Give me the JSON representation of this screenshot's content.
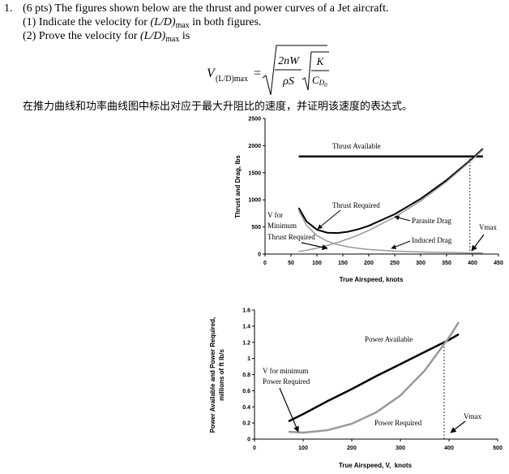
{
  "problem": {
    "number": "1.",
    "line1": "(6 pts) The figures shown below are the thrust and power curves of a Jet aircraft.",
    "line2": {
      "before": "(1) Indicate the velocity for ",
      "ratio": "(L/D)",
      "sub": "max",
      "after": " in both figures."
    },
    "line3": {
      "before": "(2) Prove the velocity for ",
      "ratio": "(L/D)",
      "sub": "max",
      "after": " is"
    },
    "formula": {
      "lhs": "V",
      "lhs_sub": "(L/D)max",
      "equals": "=",
      "num": "2nW",
      "den": "ρS",
      "inner_num": "K",
      "inner_den": "C",
      "inner_den_sub": "D",
      "inner_den_subsub": "0"
    },
    "chinese": "在推力曲线和功率曲线图中标出对应于最大升阻比的速度，并证明该速度的表达式。"
  },
  "chart_data": [
    {
      "type": "line",
      "xlabel": "True Airspeed, knots",
      "ylabel": [
        "Thrust and Drag, lbs"
      ],
      "xlim": [
        0,
        450
      ],
      "xticks": [
        0,
        50,
        100,
        150,
        200,
        250,
        300,
        350,
        400,
        450
      ],
      "ylim": [
        0,
        2500
      ],
      "yticks": [
        0,
        500,
        1000,
        1500,
        2000,
        2500
      ],
      "x": [
        65,
        80,
        100,
        120,
        140,
        160,
        180,
        200,
        250,
        300,
        350,
        400,
        420
      ],
      "series": [
        {
          "name": "Thrust Available",
          "color": "#000000",
          "values": [
            1800,
            1800,
            1800,
            1800,
            1800,
            1800,
            1800,
            1800,
            1800,
            1800,
            1800,
            1800,
            1800
          ]
        },
        {
          "name": "Thrust Required",
          "color": "#000000",
          "values": [
            851,
            601,
            449,
            393,
            387,
            412,
            458,
            521,
            735,
            1019,
            1363,
            1765,
            1942
          ]
        },
        {
          "name": "Parasite Drag",
          "color": "#999999",
          "values": [
            46,
            70,
            109,
            157,
            214,
            279,
            353,
            436,
            681,
            981,
            1335,
            1744,
            1923
          ]
        },
        {
          "name": "Induced Drag",
          "color": "#999999",
          "values": [
            805,
            531,
            340,
            236,
            173,
            133,
            105,
            85,
            54,
            38,
            28,
            21,
            19
          ]
        }
      ],
      "annotations": [
        "V for",
        "Minimum",
        "Thrust Required",
        "Vmax"
      ],
      "vmax_x": 395
    },
    {
      "type": "line",
      "xlabel": "True Airspeed, V,  knots",
      "ylabel": [
        "Power Available and Power Required,",
        "millions of ft lb/s"
      ],
      "xlim": [
        0,
        500
      ],
      "xticks": [
        0,
        100,
        200,
        300,
        400,
        500
      ],
      "ylim": [
        0,
        1.6
      ],
      "yticks": [
        0,
        0.2,
        0.4,
        0.6,
        0.8,
        1,
        1.2,
        1.4,
        1.6
      ],
      "x": [
        70,
        100,
        150,
        200,
        250,
        300,
        350,
        400,
        420
      ],
      "series": [
        {
          "name": "Power Available",
          "color": "#000000",
          "values": [
            0.22,
            0.31,
            0.47,
            0.62,
            0.78,
            0.93,
            1.08,
            1.23,
            1.3
          ]
        },
        {
          "name": "Power Required",
          "color": "#999999",
          "values": [
            0.09,
            0.08,
            0.11,
            0.19,
            0.33,
            0.54,
            0.85,
            1.26,
            1.45
          ]
        }
      ],
      "annotations": [
        "V for minimum",
        "Power Required",
        "Vmax"
      ],
      "vmax_x": 390
    }
  ]
}
